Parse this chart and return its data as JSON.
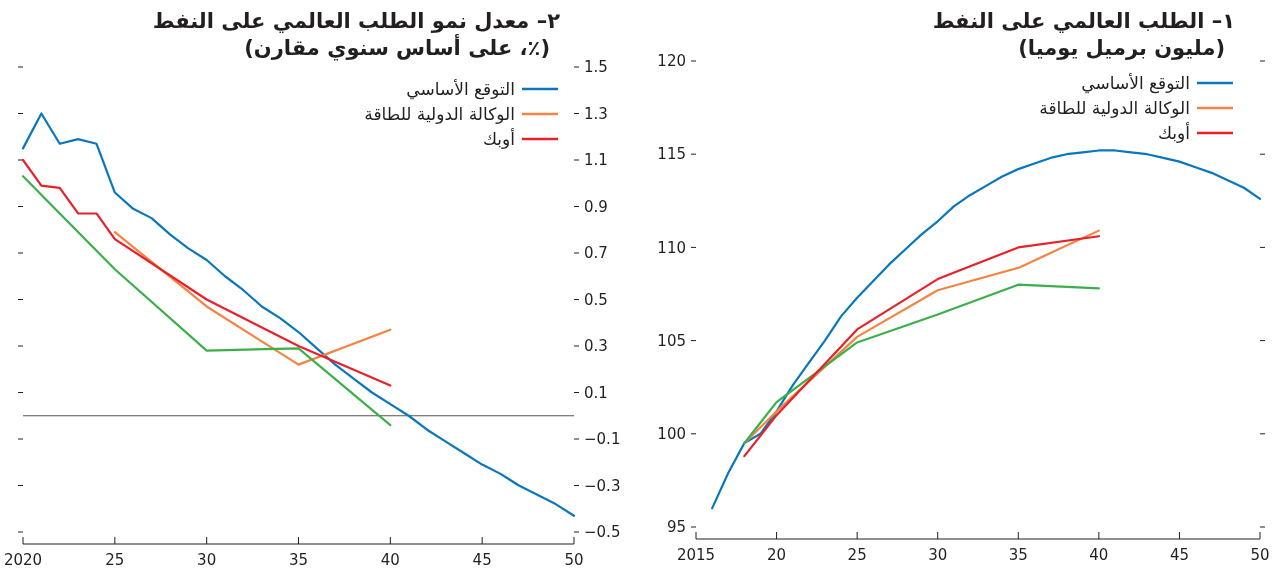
{
  "chart_data": [
    {
      "type": "line",
      "title": "١– الطلب العالمي على النفط",
      "subtitle": "(مليون برميل يوميا)",
      "legend": "top right",
      "grid": false,
      "marker": "none",
      "line_style": "solid",
      "xlim": [
        2015,
        2050
      ],
      "xticks": [
        2015,
        {
          "value": 2020,
          "label": "20"
        },
        {
          "value": 2025,
          "label": "25"
        },
        {
          "value": 2030,
          "label": "30"
        },
        {
          "value": 2035,
          "label": "35"
        },
        {
          "value": 2040,
          "label": "40"
        },
        {
          "value": 2045,
          "label": "45"
        },
        {
          "value": 2050,
          "label": "50"
        }
      ],
      "ylim": [
        95,
        120
      ],
      "yticks": [
        95,
        100,
        105,
        110,
        115,
        120
      ],
      "series": [
        {
          "name": "التوقع الأساسي",
          "color": "#0a77bd",
          "x": [
            2016,
            2017,
            2018,
            2019,
            2020,
            2021,
            2022,
            2023,
            2024,
            2025,
            2026,
            2027,
            2028,
            2029,
            2030,
            2031,
            2032,
            2033,
            2034,
            2035,
            2036,
            2037,
            2038,
            2039,
            2040,
            2041,
            2042,
            2043,
            2044,
            2045,
            2046,
            2047,
            2048,
            2049,
            2050
          ],
          "values": [
            96.0,
            97.9,
            99.5,
            100.0,
            101.2,
            102.6,
            103.8,
            105.0,
            106.3,
            107.3,
            108.2,
            109.1,
            109.9,
            110.7,
            111.4,
            112.2,
            112.8,
            113.3,
            113.8,
            114.2,
            114.5,
            114.8,
            115.0,
            115.1,
            115.2,
            115.2,
            115.1,
            115.0,
            114.8,
            114.6,
            114.3,
            114.0,
            113.6,
            113.2,
            112.6
          ]
        },
        {
          "name": "الوكالة الدولية للطاقة",
          "color": "#f58442",
          "x": [
            2018,
            2020,
            2025,
            2030,
            2035,
            2040
          ],
          "values": [
            99.5,
            101.2,
            105.2,
            107.7,
            108.9,
            110.9
          ]
        },
        {
          "color": "#3bb04a",
          "x": [
            2018,
            2020,
            2025,
            2030,
            2035,
            2040
          ],
          "values": [
            99.5,
            101.7,
            104.9,
            106.4,
            108.0,
            107.8
          ]
        },
        {
          "name": "أوبك",
          "color": "#e8202a",
          "x": [
            2018,
            2020,
            2025,
            2030,
            2035,
            2040
          ],
          "values": [
            98.8,
            101.0,
            105.6,
            108.3,
            110.0,
            110.6
          ]
        }
      ]
    },
    {
      "type": "line",
      "title": "٢– معدل نمو الطلب العالمي على النفط",
      "subtitle": "(٪، على أساس سنوي مقارن)",
      "legend": "top right",
      "grid": false,
      "marker": "none",
      "line_style": "solid",
      "xlim": [
        2020,
        2050
      ],
      "xticks": [
        2020,
        {
          "value": 2025,
          "label": "25"
        },
        {
          "value": 2030,
          "label": "30"
        },
        {
          "value": 2035,
          "label": "35"
        },
        {
          "value": 2040,
          "label": "40"
        },
        {
          "value": 2045,
          "label": "45"
        },
        {
          "value": 2050,
          "label": "50"
        }
      ],
      "ylim": [
        -0.5,
        1.5
      ],
      "yticks": [
        {
          "value": -0.5,
          "label": "−0.5"
        },
        {
          "value": -0.3,
          "label": "−0.3"
        },
        {
          "value": -0.1,
          "label": "−0.1"
        },
        0.1,
        0.3,
        0.5,
        0.7,
        0.9,
        1.1,
        1.3,
        1.5
      ],
      "ref_lines": [
        {
          "axis": "y",
          "value": 0,
          "color": "#555555"
        }
      ],
      "series": [
        {
          "name": "التوقع الأساسي",
          "color": "#0a77bd",
          "x": [
            2020,
            2021,
            2022,
            2023,
            2024,
            2025,
            2026,
            2027,
            2028,
            2029,
            2030,
            2031,
            2032,
            2033,
            2034,
            2035,
            2036,
            2037,
            2038,
            2039,
            2040,
            2041,
            2042,
            2043,
            2044,
            2045,
            2046,
            2047,
            2048,
            2049,
            2050
          ],
          "values": [
            1.15,
            1.3,
            1.17,
            1.19,
            1.17,
            0.96,
            0.89,
            0.85,
            0.78,
            0.72,
            0.67,
            0.6,
            0.54,
            0.47,
            0.42,
            0.36,
            0.29,
            0.22,
            0.16,
            0.1,
            0.05,
            0.0,
            -0.06,
            -0.11,
            -0.16,
            -0.21,
            -0.25,
            -0.3,
            -0.34,
            -0.38,
            -0.43
          ]
        },
        {
          "name": "الوكالة الدولية للطاقة",
          "color": "#f58442",
          "x": [
            2025,
            2030,
            2035,
            2040
          ],
          "values": [
            0.79,
            0.47,
            0.22,
            0.37
          ]
        },
        {
          "color": "#3bb04a",
          "x": [
            2020,
            2025,
            2030,
            2035,
            2040
          ],
          "values": [
            1.03,
            0.63,
            0.28,
            0.29,
            -0.04
          ]
        },
        {
          "name": "أوبك",
          "color": "#e8202a",
          "x": [
            2020,
            2021,
            2022,
            2023,
            2024,
            2025,
            2030,
            2035,
            2040
          ],
          "values": [
            1.1,
            0.99,
            0.98,
            0.87,
            0.87,
            0.76,
            0.5,
            0.3,
            0.13
          ]
        }
      ]
    }
  ]
}
